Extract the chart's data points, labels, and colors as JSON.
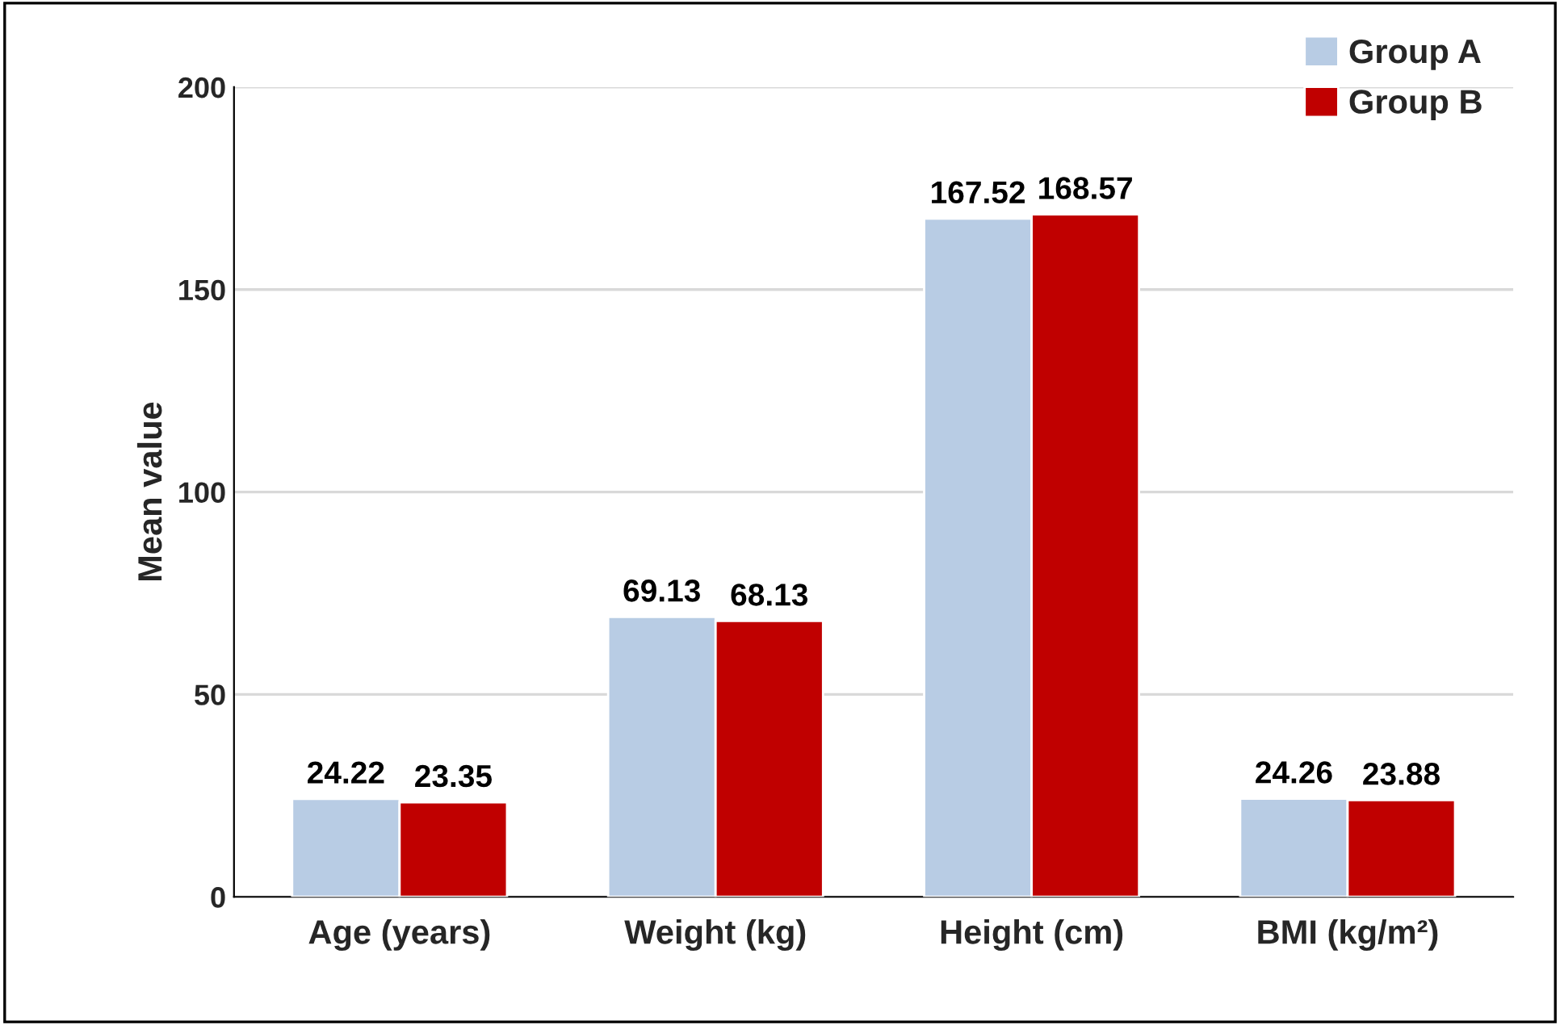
{
  "chart_data": {
    "type": "bar",
    "ylabel": "Mean value",
    "categories": [
      "Age (years)",
      "Weight (kg)",
      "Height (cm)",
      "BMI (kg/m²)"
    ],
    "series": [
      {
        "name": "Group A",
        "color": "#b8cce4",
        "values": [
          24.22,
          69.13,
          167.52,
          24.26
        ]
      },
      {
        "name": "Group B",
        "color": "#c00000",
        "values": [
          23.35,
          68.13,
          168.57,
          23.88
        ]
      }
    ],
    "ylim": [
      0,
      200
    ],
    "yticks": [
      0,
      50,
      100,
      150,
      200
    ],
    "grid": "y",
    "legend": "top right",
    "data_labels": true
  }
}
